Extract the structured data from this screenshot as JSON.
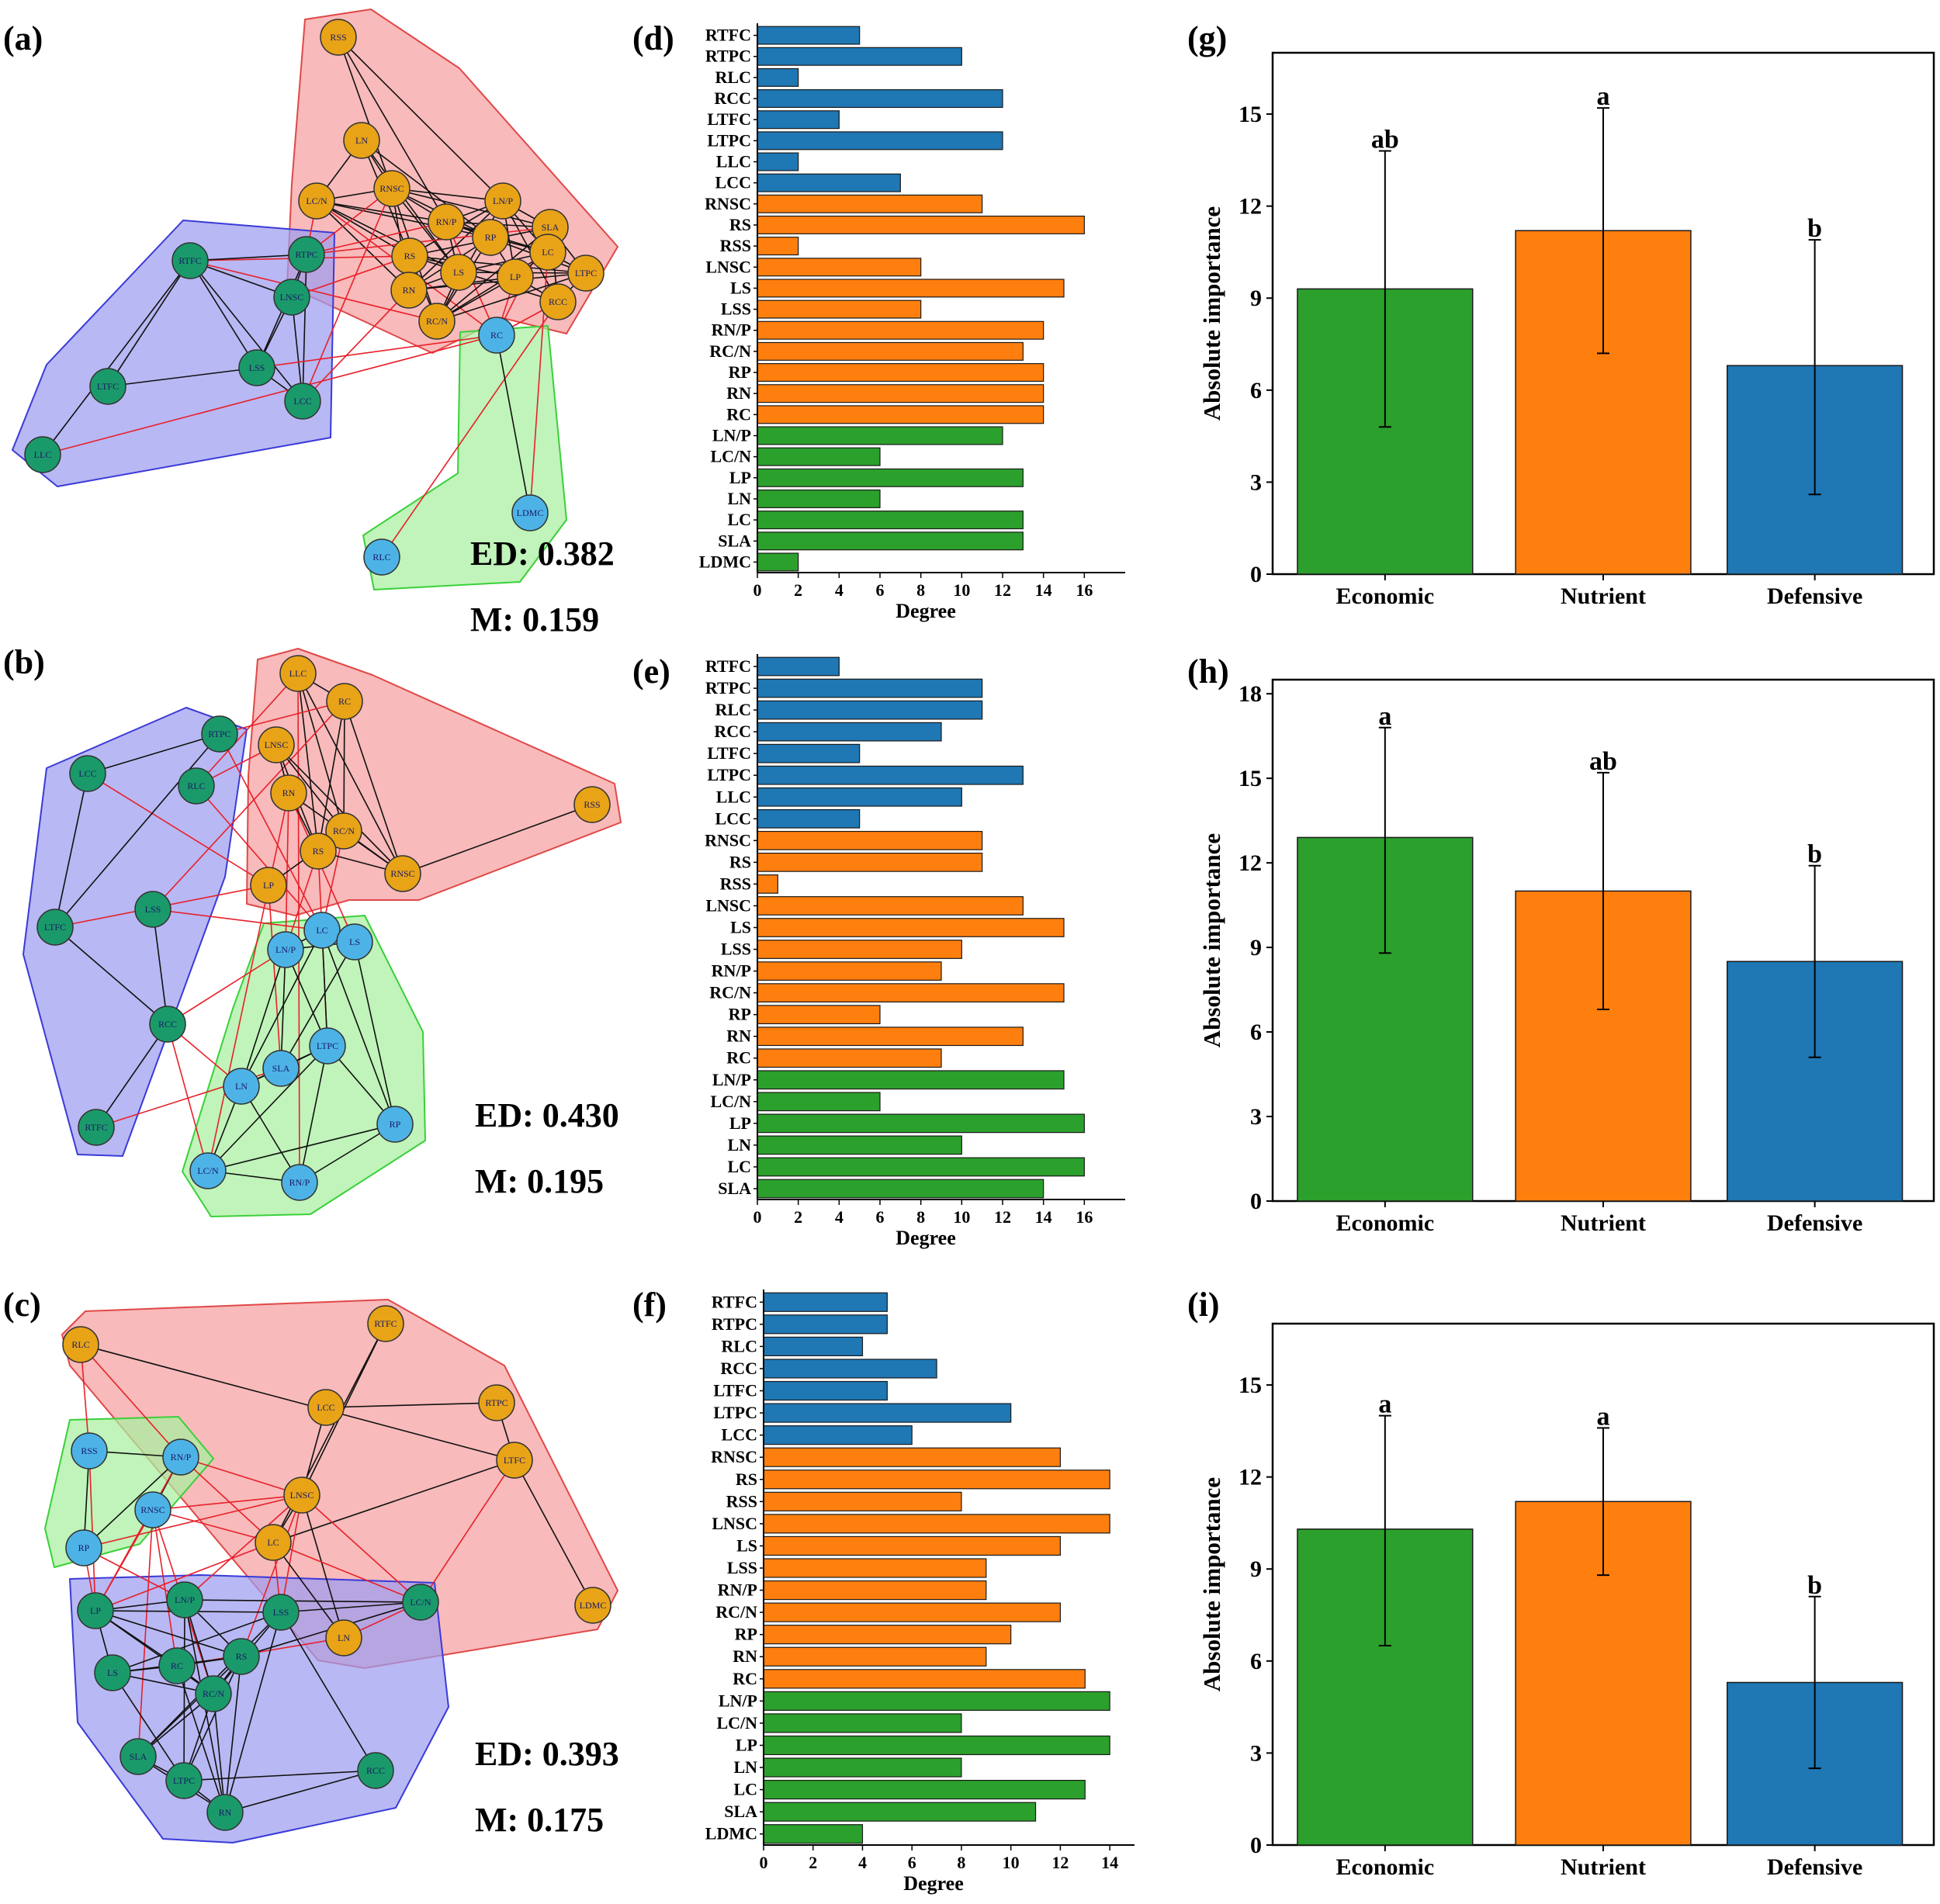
{
  "colors": {
    "economic": "#2ca02c",
    "nutrient": "#ff7f0e",
    "defensive": "#1f77b4",
    "node_orange": "#e8a317",
    "node_green": "#1a9a6a",
    "node_blue": "#4db3e6",
    "hull_red": "#f5a0a0",
    "hull_blue": "#9d9df0",
    "hull_green": "#a8f0a0"
  },
  "panel_labels": [
    "(a)",
    "(b)",
    "(c)",
    "(d)",
    "(e)",
    "(f)",
    "(g)",
    "(h)",
    "(i)"
  ],
  "networks": [
    {
      "panel": "(a)",
      "ed": "ED: 0.382",
      "m": "M: 0.159",
      "nodes": [
        {
          "id": "RSS",
          "c": "orange"
        },
        {
          "id": "LN",
          "c": "orange"
        },
        {
          "id": "LC/N",
          "c": "orange"
        },
        {
          "id": "RNSC",
          "c": "orange"
        },
        {
          "id": "LN/P",
          "c": "orange"
        },
        {
          "id": "RN/P",
          "c": "orange"
        },
        {
          "id": "RP",
          "c": "orange"
        },
        {
          "id": "SLA",
          "c": "orange"
        },
        {
          "id": "RS",
          "c": "orange"
        },
        {
          "id": "LS",
          "c": "orange"
        },
        {
          "id": "LP",
          "c": "orange"
        },
        {
          "id": "LC",
          "c": "orange"
        },
        {
          "id": "LTPC",
          "c": "orange"
        },
        {
          "id": "RN",
          "c": "orange"
        },
        {
          "id": "RCC",
          "c": "orange"
        },
        {
          "id": "RC/N",
          "c": "orange"
        },
        {
          "id": "RTFC",
          "c": "green"
        },
        {
          "id": "RTPC",
          "c": "green"
        },
        {
          "id": "LNSC",
          "c": "green"
        },
        {
          "id": "LSS",
          "c": "green"
        },
        {
          "id": "LTFC",
          "c": "green"
        },
        {
          "id": "LCC",
          "c": "green"
        },
        {
          "id": "LLC",
          "c": "green"
        },
        {
          "id": "RC",
          "c": "blue"
        },
        {
          "id": "LDMC",
          "c": "blue"
        },
        {
          "id": "RLC",
          "c": "blue"
        }
      ]
    },
    {
      "panel": "(b)",
      "ed": "ED: 0.430",
      "m": "M: 0.195",
      "nodes": [
        {
          "id": "LLC",
          "c": "orange"
        },
        {
          "id": "RC",
          "c": "orange"
        },
        {
          "id": "LNSC",
          "c": "orange"
        },
        {
          "id": "RN",
          "c": "orange"
        },
        {
          "id": "RC/N",
          "c": "orange"
        },
        {
          "id": "RS",
          "c": "orange"
        },
        {
          "id": "RNSC",
          "c": "orange"
        },
        {
          "id": "LP",
          "c": "orange"
        },
        {
          "id": "RSS",
          "c": "orange"
        },
        {
          "id": "RTPC",
          "c": "green"
        },
        {
          "id": "LCC",
          "c": "green"
        },
        {
          "id": "RLC",
          "c": "green"
        },
        {
          "id": "LSS",
          "c": "green"
        },
        {
          "id": "LTFC",
          "c": "green"
        },
        {
          "id": "RCC",
          "c": "green"
        },
        {
          "id": "RTFC",
          "c": "green"
        },
        {
          "id": "LN/P",
          "c": "blue"
        },
        {
          "id": "LC",
          "c": "blue"
        },
        {
          "id": "LS",
          "c": "blue"
        },
        {
          "id": "LTPC",
          "c": "blue"
        },
        {
          "id": "SLA",
          "c": "blue"
        },
        {
          "id": "LN",
          "c": "blue"
        },
        {
          "id": "RP",
          "c": "blue"
        },
        {
          "id": "LC/N",
          "c": "blue"
        },
        {
          "id": "RN/P",
          "c": "blue"
        }
      ]
    },
    {
      "panel": "(c)",
      "ed": "ED: 0.393",
      "m": "M: 0.175",
      "nodes": [
        {
          "id": "RLC",
          "c": "orange"
        },
        {
          "id": "RTFC",
          "c": "orange"
        },
        {
          "id": "LCC",
          "c": "orange"
        },
        {
          "id": "RTPC",
          "c": "orange"
        },
        {
          "id": "LTFC",
          "c": "orange"
        },
        {
          "id": "LNSC",
          "c": "orange"
        },
        {
          "id": "LC",
          "c": "orange"
        },
        {
          "id": "LN",
          "c": "orange"
        },
        {
          "id": "LDMC",
          "c": "orange"
        },
        {
          "id": "RSS",
          "c": "blue"
        },
        {
          "id": "RN/P",
          "c": "blue"
        },
        {
          "id": "RNSC",
          "c": "blue"
        },
        {
          "id": "RP",
          "c": "blue"
        },
        {
          "id": "LP",
          "c": "green"
        },
        {
          "id": "LN/P",
          "c": "green"
        },
        {
          "id": "LSS",
          "c": "green"
        },
        {
          "id": "LC/N",
          "c": "green"
        },
        {
          "id": "LS",
          "c": "green"
        },
        {
          "id": "RC",
          "c": "green"
        },
        {
          "id": "RS",
          "c": "green"
        },
        {
          "id": "RC/N",
          "c": "green"
        },
        {
          "id": "SLA",
          "c": "green"
        },
        {
          "id": "LTPC",
          "c": "green"
        },
        {
          "id": "RN",
          "c": "green"
        },
        {
          "id": "RCC",
          "c": "green"
        }
      ]
    }
  ],
  "chart_data": [
    {
      "panel": "(d)",
      "type": "bar",
      "orientation": "horizontal",
      "xlabel": "Degree",
      "xlim": [
        0,
        18
      ],
      "xticks": [
        "0",
        "2",
        "4",
        "6",
        "8",
        "10",
        "12",
        "14",
        "16"
      ],
      "categories": [
        "RTFC",
        "RTPC",
        "RLC",
        "RCC",
        "LTFC",
        "LTPC",
        "LLC",
        "LCC",
        "RNSC",
        "RS",
        "RSS",
        "LNSC",
        "LS",
        "LSS",
        "RN/P",
        "RC/N",
        "RP",
        "RN",
        "RC",
        "LN/P",
        "LC/N",
        "LP",
        "LN",
        "LC",
        "SLA",
        "LDMC"
      ],
      "values": [
        5,
        10,
        2,
        12,
        4,
        12,
        2,
        7,
        11,
        16,
        2,
        8,
        15,
        8,
        14,
        13,
        14,
        14,
        14,
        12,
        6,
        13,
        6,
        13,
        13,
        2
      ],
      "groups": [
        "defensive",
        "defensive",
        "defensive",
        "defensive",
        "defensive",
        "defensive",
        "defensive",
        "defensive",
        "nutrient",
        "nutrient",
        "nutrient",
        "nutrient",
        "nutrient",
        "nutrient",
        "nutrient",
        "nutrient",
        "nutrient",
        "nutrient",
        "nutrient",
        "economic",
        "economic",
        "economic",
        "economic",
        "economic",
        "economic",
        "economic"
      ]
    },
    {
      "panel": "(e)",
      "type": "bar",
      "orientation": "horizontal",
      "xlabel": "Degree",
      "xlim": [
        0,
        18
      ],
      "xticks": [
        "0",
        "2",
        "4",
        "6",
        "8",
        "10",
        "12",
        "14",
        "16"
      ],
      "categories": [
        "RTFC",
        "RTPC",
        "RLC",
        "RCC",
        "LTFC",
        "LTPC",
        "LLC",
        "LCC",
        "RNSC",
        "RS",
        "RSS",
        "LNSC",
        "LS",
        "LSS",
        "RN/P",
        "RC/N",
        "RP",
        "RN",
        "RC",
        "LN/P",
        "LC/N",
        "LP",
        "LN",
        "LC",
        "SLA"
      ],
      "values": [
        4,
        11,
        11,
        9,
        5,
        13,
        10,
        5,
        11,
        11,
        1,
        13,
        15,
        10,
        9,
        15,
        6,
        13,
        9,
        15,
        6,
        16,
        10,
        16,
        14
      ],
      "groups": [
        "defensive",
        "defensive",
        "defensive",
        "defensive",
        "defensive",
        "defensive",
        "defensive",
        "defensive",
        "nutrient",
        "nutrient",
        "nutrient",
        "nutrient",
        "nutrient",
        "nutrient",
        "nutrient",
        "nutrient",
        "nutrient",
        "nutrient",
        "nutrient",
        "economic",
        "economic",
        "economic",
        "economic",
        "economic",
        "economic"
      ]
    },
    {
      "panel": "(f)",
      "type": "bar",
      "orientation": "horizontal",
      "xlabel": "Degree",
      "xlim": [
        0,
        15
      ],
      "xticks": [
        "0",
        "2",
        "4",
        "6",
        "8",
        "10",
        "12",
        "14"
      ],
      "categories": [
        "RTFC",
        "RTPC",
        "RLC",
        "RCC",
        "LTFC",
        "LTPC",
        "LCC",
        "RNSC",
        "RS",
        "RSS",
        "LNSC",
        "LS",
        "LSS",
        "RN/P",
        "RC/N",
        "RP",
        "RN",
        "RC",
        "LN/P",
        "LC/N",
        "LP",
        "LN",
        "LC",
        "SLA",
        "LDMC"
      ],
      "values": [
        5,
        5,
        4,
        7,
        5,
        10,
        6,
        12,
        14,
        8,
        14,
        12,
        9,
        9,
        12,
        10,
        9,
        13,
        14,
        8,
        14,
        8,
        13,
        11,
        4
      ],
      "groups": [
        "defensive",
        "defensive",
        "defensive",
        "defensive",
        "defensive",
        "defensive",
        "defensive",
        "nutrient",
        "nutrient",
        "nutrient",
        "nutrient",
        "nutrient",
        "nutrient",
        "nutrient",
        "nutrient",
        "nutrient",
        "nutrient",
        "nutrient",
        "economic",
        "economic",
        "economic",
        "economic",
        "economic",
        "economic",
        "economic"
      ]
    },
    {
      "panel": "(g)",
      "type": "bar",
      "ylabel": "Absolute importance",
      "ylim": [
        0,
        17
      ],
      "yticks": [
        "0",
        "3",
        "6",
        "9",
        "12",
        "15"
      ],
      "categories": [
        "Economic",
        "Nutrient",
        "Defensive"
      ],
      "values": [
        9.3,
        11.2,
        6.8
      ],
      "error_low": [
        4.8,
        7.2,
        2.6
      ],
      "error_high": [
        13.8,
        15.2,
        10.9
      ],
      "letters": [
        "ab",
        "a",
        "b"
      ]
    },
    {
      "panel": "(h)",
      "type": "bar",
      "ylabel": "Absolute importance",
      "ylim": [
        0,
        18.5
      ],
      "yticks": [
        "0",
        "3",
        "6",
        "9",
        "12",
        "15",
        "18"
      ],
      "categories": [
        "Economic",
        "Nutrient",
        "Defensive"
      ],
      "values": [
        12.9,
        11.0,
        8.5
      ],
      "error_low": [
        8.8,
        6.8,
        5.1
      ],
      "error_high": [
        16.8,
        15.2,
        11.9
      ],
      "letters": [
        "a",
        "ab",
        "b"
      ]
    },
    {
      "panel": "(i)",
      "type": "bar",
      "ylabel": "Absolute importance",
      "ylim": [
        0,
        17
      ],
      "yticks": [
        "0",
        "3",
        "6",
        "9",
        "12",
        "15"
      ],
      "categories": [
        "Economic",
        "Nutrient",
        "Defensive"
      ],
      "values": [
        10.3,
        11.2,
        5.3
      ],
      "error_low": [
        6.5,
        8.8,
        2.5
      ],
      "error_high": [
        14.0,
        13.6,
        8.1
      ],
      "letters": [
        "a",
        "a",
        "b"
      ]
    }
  ]
}
